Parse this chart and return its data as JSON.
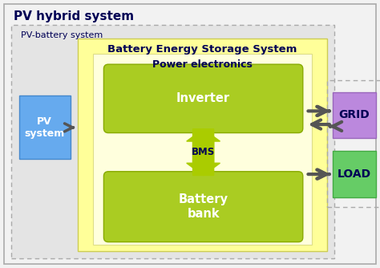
{
  "fig_width": 4.74,
  "fig_height": 3.34,
  "dpi": 100,
  "bg_outer": "#f2f2f2",
  "bg_pv_battery": "#e4e4e4",
  "bg_bess_yellow": "#ffff99",
  "bg_power_electronics": "#ffffdd",
  "title_pv_hybrid": "PV hybrid system",
  "title_pv_battery": "PV-battery system",
  "title_bess": "Battery Energy Storage System",
  "title_power_elec": "Power electronics",
  "label_inverter": "Inverter",
  "label_bms": "BMS",
  "label_battery": "Battery\nbank",
  "label_pv": "PV\nsystem",
  "label_grid": "GRID",
  "label_load": "LOAD",
  "color_pv": "#66aaee",
  "color_grid": "#bb88dd",
  "color_load": "#66cc66",
  "color_inverter": "#aacc22",
  "color_battery": "#aacc22",
  "color_bms_arrow": "#aacc00",
  "color_arrow": "#555555",
  "color_title_blue": "#000077",
  "color_dark_blue": "#000055"
}
